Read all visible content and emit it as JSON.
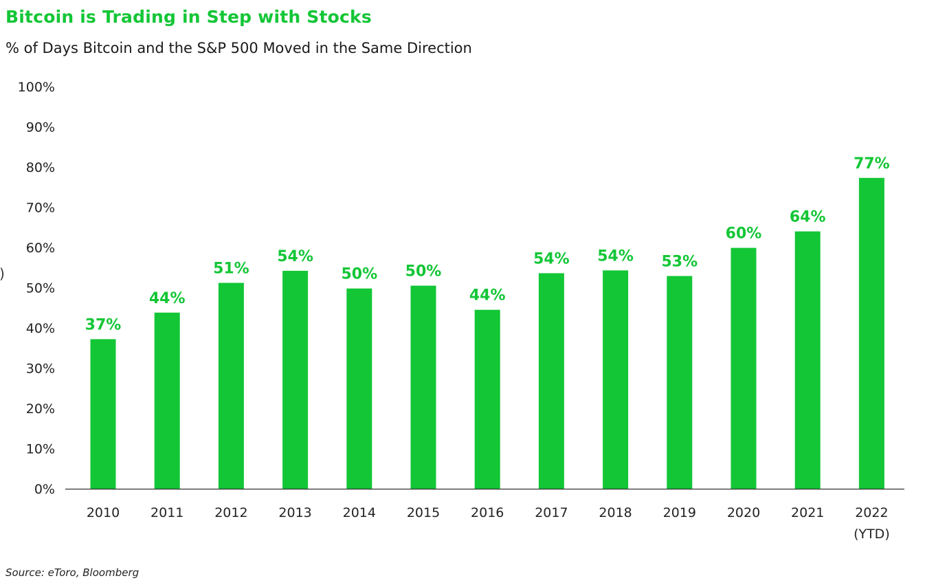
{
  "chart_data": {
    "type": "bar",
    "title": "Bitcoin is Trading in Step with Stocks",
    "subtitle": "% of Days Bitcoin and the S&P 500 Moved in the Same Direction",
    "xlabel": "",
    "ylabel": "",
    "categories": [
      [
        "2010"
      ],
      [
        "2011"
      ],
      [
        "2012"
      ],
      [
        "2013"
      ],
      [
        "2014"
      ],
      [
        "2015"
      ],
      [
        "2016"
      ],
      [
        "2017"
      ],
      [
        "2018"
      ],
      [
        "2019"
      ],
      [
        "2020"
      ],
      [
        "2021"
      ],
      [
        "2022",
        "(YTD)"
      ]
    ],
    "values": [
      37.2,
      43.8,
      51.2,
      54.2,
      49.8,
      50.5,
      44.5,
      53.6,
      54.3,
      52.9,
      59.9,
      64.0,
      77.3
    ],
    "data_labels": [
      "37%",
      "44%",
      "51%",
      "54%",
      "50%",
      "50%",
      "44%",
      "54%",
      "54%",
      "53%",
      "60%",
      "64%",
      "77%"
    ],
    "ylim": [
      0,
      100
    ],
    "y_ticks": [
      0,
      10,
      20,
      30,
      40,
      50,
      60,
      70,
      80,
      90,
      100
    ],
    "y_tick_labels": [
      "0%",
      "10%",
      "20%",
      "30%",
      "40%",
      "50%",
      "60%",
      "70%",
      "80%",
      "90%",
      "100%"
    ],
    "grid": false,
    "legend": "none",
    "colors": {
      "bar": "#13c636",
      "data_label": "#13c636",
      "title": "#13c636",
      "axis": "#333333",
      "tick_text": "#222222"
    }
  },
  "left_edge_text": ")",
  "source": "Source: eToro, Bloomberg"
}
